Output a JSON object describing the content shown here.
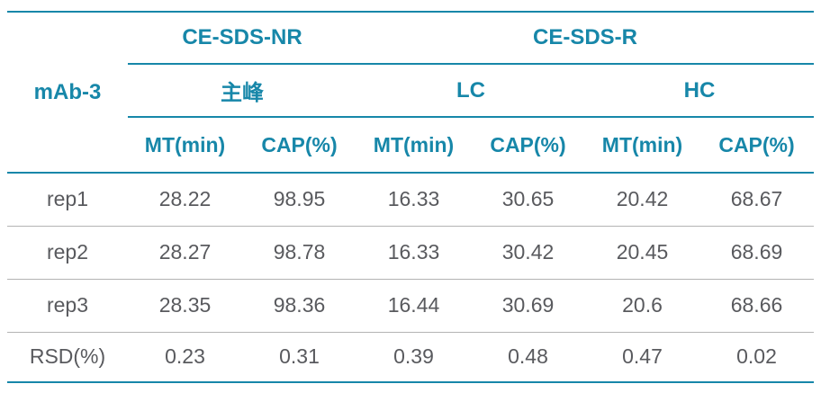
{
  "colors": {
    "accent": "#1787a9",
    "data_text": "#595a5e",
    "divider": "#b3b3b3"
  },
  "chart_data": {
    "type": "table",
    "corner_label": "mAb-3",
    "groups": [
      {
        "label": "CE-SDS-NR",
        "span": 2
      },
      {
        "label": "CE-SDS-R",
        "span": 4
      }
    ],
    "subgroups": [
      {
        "label": "主峰",
        "span": 2
      },
      {
        "label": "LC",
        "span": 2
      },
      {
        "label": "HC",
        "span": 2
      }
    ],
    "metrics": [
      "MT(min)",
      "CAP(%)",
      "MT(min)",
      "CAP(%)",
      "MT(min)",
      "CAP(%)"
    ],
    "rows": [
      {
        "label": "rep1",
        "values": [
          "28.22",
          "98.95",
          "16.33",
          "30.65",
          "20.42",
          "68.67"
        ]
      },
      {
        "label": "rep2",
        "values": [
          "28.27",
          "98.78",
          "16.33",
          "30.42",
          "20.45",
          "68.69"
        ]
      },
      {
        "label": "rep3",
        "values": [
          "28.35",
          "98.36",
          "16.44",
          "30.69",
          "20.6",
          "68.66"
        ]
      },
      {
        "label": "RSD(%)",
        "values": [
          "0.23",
          "0.31",
          "0.39",
          "0.48",
          "0.47",
          "0.02"
        ]
      }
    ]
  }
}
